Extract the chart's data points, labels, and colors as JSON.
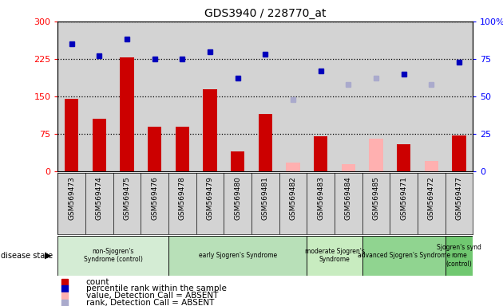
{
  "title": "GDS3940 / 228770_at",
  "samples": [
    "GSM569473",
    "GSM569474",
    "GSM569475",
    "GSM569476",
    "GSM569478",
    "GSM569479",
    "GSM569480",
    "GSM569481",
    "GSM569482",
    "GSM569483",
    "GSM569484",
    "GSM569485",
    "GSM569471",
    "GSM569472",
    "GSM569477"
  ],
  "count_present": [
    145,
    105,
    228,
    90,
    90,
    165,
    40,
    115,
    null,
    70,
    null,
    null,
    55,
    null,
    72
  ],
  "count_absent": [
    null,
    null,
    null,
    null,
    null,
    null,
    null,
    null,
    18,
    null,
    15,
    65,
    null,
    20,
    null
  ],
  "rank_present_pct": [
    85,
    77,
    88,
    75,
    75,
    80,
    62,
    78,
    null,
    67,
    null,
    null,
    65,
    null,
    73
  ],
  "rank_absent_pct": [
    null,
    null,
    null,
    null,
    null,
    null,
    null,
    null,
    48,
    null,
    58,
    62,
    null,
    58,
    null
  ],
  "ylim_left": [
    0,
    300
  ],
  "ylim_right": [
    0,
    100
  ],
  "yticks_left": [
    0,
    75,
    150,
    225,
    300
  ],
  "yticks_right": [
    0,
    25,
    50,
    75,
    100
  ],
  "groups": [
    {
      "label": "non-Sjogren's\nSyndrome (control)",
      "start": 0,
      "end": 4,
      "color": "#d4ecd4"
    },
    {
      "label": "early Sjogren's Syndrome",
      "start": 4,
      "end": 9,
      "color": "#b8e0b8"
    },
    {
      "label": "moderate Sjogren's\nSyndrome",
      "start": 9,
      "end": 11,
      "color": "#c8ecc0"
    },
    {
      "label": "advanced Sjogren's Syndrome",
      "start": 11,
      "end": 14,
      "color": "#90d490"
    },
    {
      "label": "Sjogren's synd\nrome\n(control)",
      "start": 14,
      "end": 15,
      "color": "#70c870"
    }
  ],
  "bar_color_present": "#cc0000",
  "bar_color_absent": "#ffb0b0",
  "dot_color_present": "#0000bb",
  "dot_color_absent": "#aaaacc",
  "bg_color": "#d3d3d3",
  "legend_items": [
    {
      "color": "#cc0000",
      "label": "count"
    },
    {
      "color": "#0000bb",
      "label": "percentile rank within the sample"
    },
    {
      "color": "#ffb0b0",
      "label": "value, Detection Call = ABSENT"
    },
    {
      "color": "#aaaacc",
      "label": "rank, Detection Call = ABSENT"
    }
  ]
}
